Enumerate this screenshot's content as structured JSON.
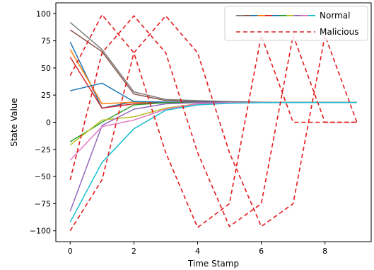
{
  "chart_data": {
    "type": "line",
    "title": "",
    "xlabel": "Time Stamp",
    "ylabel": "State Value",
    "xlim": [
      -0.45,
      9.45
    ],
    "ylim": [
      -110,
      110
    ],
    "xticks": [
      0,
      2,
      4,
      6,
      8
    ],
    "yticks": [
      -100,
      -75,
      -50,
      -25,
      0,
      25,
      50,
      75,
      100
    ],
    "grid": false,
    "legend": {
      "placement": "top-right",
      "entries": [
        {
          "label": "Normal",
          "style": "solid multicolor"
        },
        {
          "label": "Malicious",
          "style": "dashed",
          "color": "#d62728"
        }
      ]
    },
    "x": [
      0,
      1,
      2,
      3,
      4,
      5,
      6,
      7,
      8,
      9
    ],
    "normal_series": [
      {
        "color": "#7f7f7f",
        "values": [
          92,
          67,
          28,
          21,
          20,
          19,
          18.5,
          18.3,
          18.2,
          18.2
        ]
      },
      {
        "color": "#8c564b",
        "values": [
          85,
          65,
          26,
          20,
          19,
          18.6,
          18.4,
          18.3,
          18.2,
          18.2
        ]
      },
      {
        "color": "#1f77b4",
        "values": [
          74,
          13,
          19,
          18.5,
          18.4,
          18.3,
          18.2,
          18.2,
          18.2,
          18.2
        ]
      },
      {
        "color": "#ff7f0e",
        "values": [
          67,
          17,
          18.5,
          18.4,
          18.3,
          18.2,
          18.2,
          18.2,
          18.2,
          18.2
        ]
      },
      {
        "color": "#d62728",
        "values": [
          60,
          13,
          17,
          18.3,
          18.2,
          18.2,
          18.2,
          18.2,
          18.2,
          18.2
        ]
      },
      {
        "color": "#1f77b4",
        "values": [
          29,
          36,
          19,
          18.5,
          18.4,
          18.3,
          18.2,
          18.2,
          18.2,
          18.2
        ]
      },
      {
        "color": "#2ca02c",
        "values": [
          -18,
          0,
          16,
          18,
          18.1,
          18.2,
          18.2,
          18.2,
          18.2,
          18.2
        ]
      },
      {
        "color": "#bcbd22",
        "values": [
          -21,
          2,
          5,
          13,
          17,
          18,
          18.2,
          18.2,
          18.2,
          18.2
        ]
      },
      {
        "color": "#9467bd",
        "values": [
          -82,
          -3,
          12,
          17,
          18,
          18.2,
          18.2,
          18.2,
          18.2,
          18.2
        ]
      },
      {
        "color": "#e377c2",
        "values": [
          -35,
          -4,
          2,
          12,
          17,
          18,
          18.2,
          18.2,
          18.2,
          18.2
        ]
      },
      {
        "color": "#17becf",
        "values": [
          -92,
          -37,
          -6,
          11,
          16,
          17.5,
          18,
          18.2,
          18.2,
          18.2
        ]
      }
    ],
    "malicious_series": [
      {
        "color": "#e31a1c",
        "values": [
          -100,
          -53,
          64,
          98,
          64,
          -28,
          -96,
          -75,
          80,
          0
        ]
      },
      {
        "color": "#e31a1c",
        "values": [
          -53,
          64,
          98,
          64,
          -28,
          -96,
          -75,
          80,
          0,
          0
        ]
      },
      {
        "color": "#e31a1c",
        "values": [
          43,
          99,
          64,
          -28,
          -97,
          -75,
          80,
          0,
          0,
          0
        ]
      }
    ]
  }
}
